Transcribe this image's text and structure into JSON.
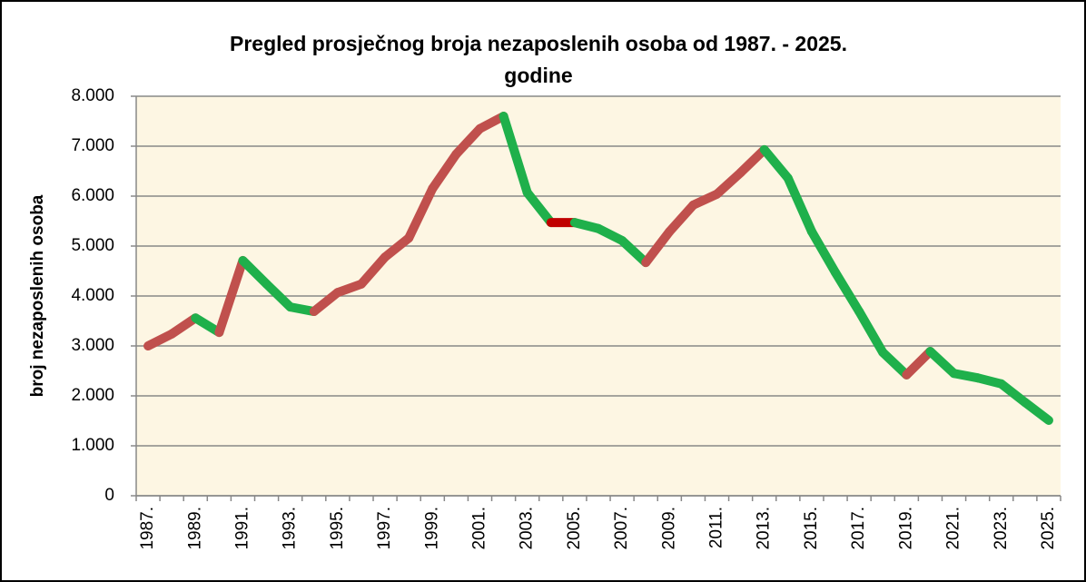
{
  "chart_data": {
    "type": "line",
    "title": [
      "Pregled prosječnog broja nezaposlenih osoba od 1987. - 2025.",
      "godine"
    ],
    "y_label": "broj nezaposlenih osoba",
    "categories": [
      "1987.",
      null,
      "1989.",
      null,
      "1991.",
      null,
      "1993.",
      null,
      "1995.",
      null,
      "1997.",
      null,
      "1999.",
      null,
      "2001.",
      null,
      "2003.",
      null,
      "2005.",
      null,
      "2007.",
      null,
      "2009.",
      null,
      "2011.",
      null,
      "2013.",
      null,
      "2015.",
      null,
      "2017.",
      null,
      "2019.",
      null,
      "2021.",
      null,
      "2023.",
      null,
      "2025."
    ],
    "values": [
      3000,
      3240,
      3560,
      3270,
      4710,
      4240,
      3780,
      3690,
      4070,
      4240,
      4780,
      5160,
      6150,
      6840,
      7350,
      7600,
      6070,
      5470,
      5470,
      5350,
      5110,
      4670,
      5290,
      5820,
      6040,
      6470,
      6930,
      6360,
      5290,
      4470,
      3690,
      2870,
      2420,
      2890,
      2450,
      2360,
      2240,
      1870,
      1510
    ],
    "increase_color": "#c0504d",
    "decrease_color": "#1fb04b",
    "flat_color": "#c00000",
    "ylim": [
      0,
      8000
    ],
    "yticks": [
      0,
      {
        "value": 1000,
        "label": "1.000"
      },
      {
        "value": 2000,
        "label": "2.000"
      },
      {
        "value": 3000,
        "label": "3.000"
      },
      {
        "value": 4000,
        "label": "4.000"
      },
      {
        "value": 5000,
        "label": "5.000"
      },
      {
        "value": 6000,
        "label": "6.000"
      },
      {
        "value": 7000,
        "label": "7.000"
      },
      {
        "value": 8000,
        "label": "8.000"
      }
    ],
    "grid": true
  }
}
